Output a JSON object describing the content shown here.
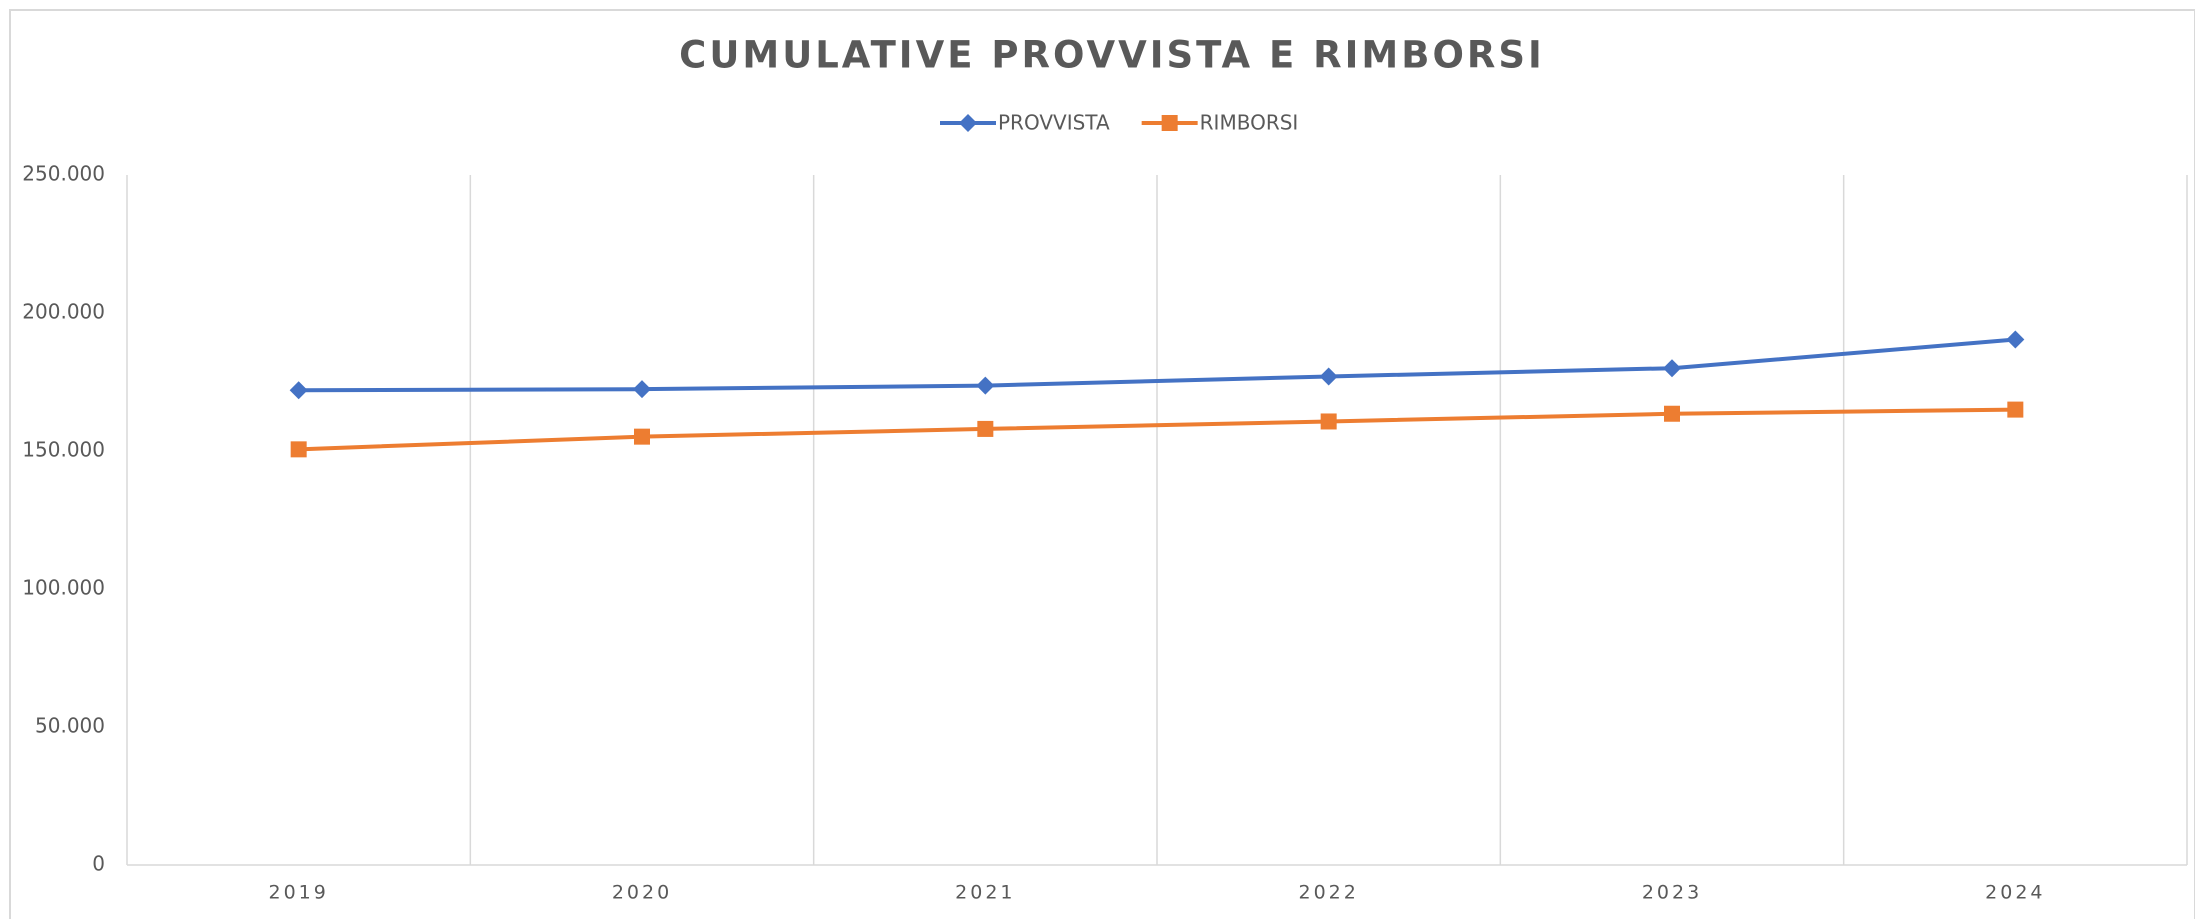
{
  "chart_data": {
    "type": "line",
    "title": "CUMULATIVE PROVVISTA E RIMBORSI",
    "categories": [
      "2019",
      "2020",
      "2021",
      "2022",
      "2023",
      "2024"
    ],
    "series": [
      {
        "name": "PROVVISTA",
        "color": "#4472c4",
        "marker": "diamond",
        "values": [
          172000,
          172400,
          173700,
          177000,
          180000,
          190400
        ]
      },
      {
        "name": "RIMBORSI",
        "color": "#ed7d31",
        "marker": "square",
        "values": [
          150600,
          155200,
          158000,
          160700,
          163500,
          165000
        ]
      }
    ],
    "ylim": [
      0,
      250000
    ],
    "yticks": [
      0,
      {
        "value": 50000,
        "label": "50.000"
      },
      {
        "value": 100000,
        "label": "100.000"
      },
      {
        "value": 150000,
        "label": "150.000"
      },
      {
        "value": 200000,
        "label": "200.000"
      },
      {
        "value": 250000,
        "label": "250.000"
      }
    ],
    "grid": true,
    "legend": "top"
  }
}
